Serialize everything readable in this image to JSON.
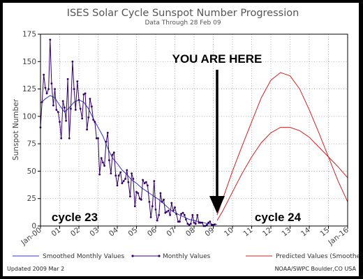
{
  "chart_data": {
    "type": "line",
    "title": "ISES Solar Cycle Sunspot Number Progression",
    "subtitle": "Data Through 28 Feb 09",
    "ylabel": "Sunspot Number",
    "xlabel": "",
    "ylim": [
      0,
      175
    ],
    "yticks": [
      0,
      25,
      50,
      75,
      100,
      125,
      150,
      175
    ],
    "xlim": [
      2000.0,
      2016.0
    ],
    "xticks": [
      {
        "x": 2000,
        "label": "Jan-00"
      },
      {
        "x": 2001,
        "label": "01"
      },
      {
        "x": 2002,
        "label": "02"
      },
      {
        "x": 2003,
        "label": "03"
      },
      {
        "x": 2004,
        "label": "04"
      },
      {
        "x": 2005,
        "label": "05"
      },
      {
        "x": 2006,
        "label": "06"
      },
      {
        "x": 2007,
        "label": "07"
      },
      {
        "x": 2008,
        "label": "08"
      },
      {
        "x": 2009,
        "label": "09"
      },
      {
        "x": 2010,
        "label": "10"
      },
      {
        "x": 2011,
        "label": "11"
      },
      {
        "x": 2012,
        "label": "12"
      },
      {
        "x": 2013,
        "label": "13"
      },
      {
        "x": 2014,
        "label": "14"
      },
      {
        "x": 2015,
        "label": "15"
      },
      {
        "x": 2016,
        "label": "Jan-16"
      }
    ],
    "grid": true,
    "series": [
      {
        "name": "Smoothed Monthly Values",
        "color": "#3333cc",
        "markers": false,
        "points": [
          [
            2000.0,
            112
          ],
          [
            2000.25,
            116
          ],
          [
            2000.5,
            119
          ],
          [
            2000.75,
            117
          ],
          [
            2001.0,
            110
          ],
          [
            2001.25,
            104
          ],
          [
            2001.5,
            108
          ],
          [
            2001.75,
            113
          ],
          [
            2002.0,
            115
          ],
          [
            2002.25,
            113
          ],
          [
            2002.5,
            107
          ],
          [
            2002.75,
            98
          ],
          [
            2003.0,
            90
          ],
          [
            2003.25,
            82
          ],
          [
            2003.5,
            71
          ],
          [
            2003.75,
            62
          ],
          [
            2004.0,
            57
          ],
          [
            2004.25,
            51
          ],
          [
            2004.5,
            47
          ],
          [
            2004.75,
            42
          ],
          [
            2005.0,
            39
          ],
          [
            2005.25,
            35
          ],
          [
            2005.5,
            32
          ],
          [
            2005.75,
            29
          ],
          [
            2006.0,
            26
          ],
          [
            2006.25,
            23
          ],
          [
            2006.5,
            19
          ],
          [
            2006.75,
            15
          ],
          [
            2007.0,
            12
          ],
          [
            2007.25,
            10
          ],
          [
            2007.5,
            8
          ],
          [
            2007.75,
            6
          ],
          [
            2008.0,
            5
          ],
          [
            2008.25,
            4
          ],
          [
            2008.5,
            3
          ],
          [
            2008.75,
            2
          ],
          [
            2009.0,
            1.5
          ],
          [
            2009.2,
            1.5
          ]
        ]
      },
      {
        "name": "Monthly Values",
        "color": "#330066",
        "markers": true,
        "points": [
          [
            2000.0,
            90
          ],
          [
            2000.08,
            113
          ],
          [
            2000.17,
            138
          ],
          [
            2000.25,
            126
          ],
          [
            2000.33,
            121
          ],
          [
            2000.42,
            125
          ],
          [
            2000.5,
            170
          ],
          [
            2000.58,
            130
          ],
          [
            2000.67,
            110
          ],
          [
            2000.75,
            125
          ],
          [
            2000.83,
            106
          ],
          [
            2000.92,
            104
          ],
          [
            2001.0,
            95
          ],
          [
            2001.08,
            80
          ],
          [
            2001.17,
            114
          ],
          [
            2001.25,
            108
          ],
          [
            2001.33,
            96
          ],
          [
            2001.42,
            134
          ],
          [
            2001.5,
            80
          ],
          [
            2001.58,
            107
          ],
          [
            2001.67,
            150
          ],
          [
            2001.75,
            125
          ],
          [
            2001.83,
            106
          ],
          [
            2001.92,
            132
          ],
          [
            2002.0,
            115
          ],
          [
            2002.08,
            107
          ],
          [
            2002.17,
            98
          ],
          [
            2002.25,
            120
          ],
          [
            2002.33,
            121
          ],
          [
            2002.42,
            88
          ],
          [
            2002.5,
            99
          ],
          [
            2002.58,
            116
          ],
          [
            2002.67,
            109
          ],
          [
            2002.75,
            97
          ],
          [
            2002.83,
            95
          ],
          [
            2002.92,
            80
          ],
          [
            2003.0,
            80
          ],
          [
            2003.08,
            47
          ],
          [
            2003.17,
            62
          ],
          [
            2003.25,
            58
          ],
          [
            2003.33,
            55
          ],
          [
            2003.42,
            77
          ],
          [
            2003.5,
            85
          ],
          [
            2003.58,
            60
          ],
          [
            2003.67,
            48
          ],
          [
            2003.75,
            65
          ],
          [
            2003.83,
            67
          ],
          [
            2003.92,
            46
          ],
          [
            2004.0,
            37
          ],
          [
            2004.08,
            46
          ],
          [
            2004.17,
            49
          ],
          [
            2004.25,
            39
          ],
          [
            2004.33,
            41
          ],
          [
            2004.42,
            43
          ],
          [
            2004.5,
            51
          ],
          [
            2004.58,
            40
          ],
          [
            2004.67,
            27
          ],
          [
            2004.75,
            48
          ],
          [
            2004.83,
            43
          ],
          [
            2004.92,
            18
          ],
          [
            2005.0,
            31
          ],
          [
            2005.08,
            30
          ],
          [
            2005.17,
            25
          ],
          [
            2005.25,
            24
          ],
          [
            2005.33,
            42
          ],
          [
            2005.42,
            39
          ],
          [
            2005.5,
            40
          ],
          [
            2005.58,
            37
          ],
          [
            2005.67,
            22
          ],
          [
            2005.75,
            8
          ],
          [
            2005.83,
            18
          ],
          [
            2005.92,
            41
          ],
          [
            2006.0,
            15
          ],
          [
            2006.08,
            5
          ],
          [
            2006.17,
            10
          ],
          [
            2006.25,
            30
          ],
          [
            2006.33,
            22
          ],
          [
            2006.42,
            24
          ],
          [
            2006.5,
            12
          ],
          [
            2006.58,
            13
          ],
          [
            2006.67,
            14
          ],
          [
            2006.75,
            10
          ],
          [
            2006.83,
            21
          ],
          [
            2006.92,
            14
          ],
          [
            2007.0,
            17
          ],
          [
            2007.08,
            11
          ],
          [
            2007.17,
            4
          ],
          [
            2007.25,
            4
          ],
          [
            2007.33,
            11
          ],
          [
            2007.42,
            12
          ],
          [
            2007.5,
            10
          ],
          [
            2007.58,
            6
          ],
          [
            2007.67,
            2
          ],
          [
            2007.75,
            1
          ],
          [
            2007.83,
            2
          ],
          [
            2007.92,
            10
          ],
          [
            2008.0,
            3
          ],
          [
            2008.08,
            2
          ],
          [
            2008.17,
            10
          ],
          [
            2008.25,
            3
          ],
          [
            2008.33,
            3
          ],
          [
            2008.42,
            3
          ],
          [
            2008.5,
            0
          ],
          [
            2008.58,
            0
          ],
          [
            2008.67,
            1
          ],
          [
            2008.75,
            3
          ],
          [
            2008.83,
            4
          ],
          [
            2008.92,
            1
          ],
          [
            2009.0,
            1
          ],
          [
            2009.08,
            1.5
          ]
        ]
      },
      {
        "name": "Predicted Values (Smoothed)",
        "color": "#cc2222",
        "markers": false,
        "points": [
          [
            2009.2,
            10
          ],
          [
            2009.5,
            25
          ],
          [
            2010.0,
            50
          ],
          [
            2010.5,
            73
          ],
          [
            2011.0,
            95
          ],
          [
            2011.5,
            117
          ],
          [
            2012.0,
            133
          ],
          [
            2012.5,
            140
          ],
          [
            2013.0,
            137
          ],
          [
            2013.5,
            125
          ],
          [
            2014.0,
            106
          ],
          [
            2014.5,
            85
          ],
          [
            2015.0,
            63
          ],
          [
            2015.5,
            41
          ],
          [
            2016.0,
            22
          ]
        ]
      },
      {
        "name": "Predicted Values (Smoothed)",
        "color": "#cc2222",
        "markers": false,
        "points": [
          [
            2009.2,
            5
          ],
          [
            2009.5,
            14
          ],
          [
            2010.0,
            31
          ],
          [
            2010.5,
            48
          ],
          [
            2011.0,
            63
          ],
          [
            2011.5,
            76
          ],
          [
            2012.0,
            85
          ],
          [
            2012.5,
            90
          ],
          [
            2013.0,
            90
          ],
          [
            2013.5,
            87
          ],
          [
            2014.0,
            81
          ],
          [
            2014.5,
            72
          ],
          [
            2015.0,
            63
          ],
          [
            2015.5,
            54
          ],
          [
            2016.0,
            44
          ]
        ]
      }
    ],
    "annotations": [
      {
        "text": "YOU ARE HERE",
        "arrow_x": 2009.2,
        "arrow_y": 5
      },
      {
        "text": "cycle 23"
      },
      {
        "text": "cycle 24"
      }
    ],
    "legend_position": "bottom",
    "legend": [
      {
        "label": "Smoothed Monthly Values",
        "color": "#3333cc",
        "marker": false
      },
      {
        "label": "Monthly Values",
        "color": "#330066",
        "marker": true
      },
      {
        "label": "Predicted Values (Smoothed)",
        "color": "#cc2222",
        "marker": false
      }
    ]
  },
  "footer": {
    "updated": "Updated 2009 Mar  2",
    "credit": "NOAA/SWPC Boulder,CO USA"
  }
}
